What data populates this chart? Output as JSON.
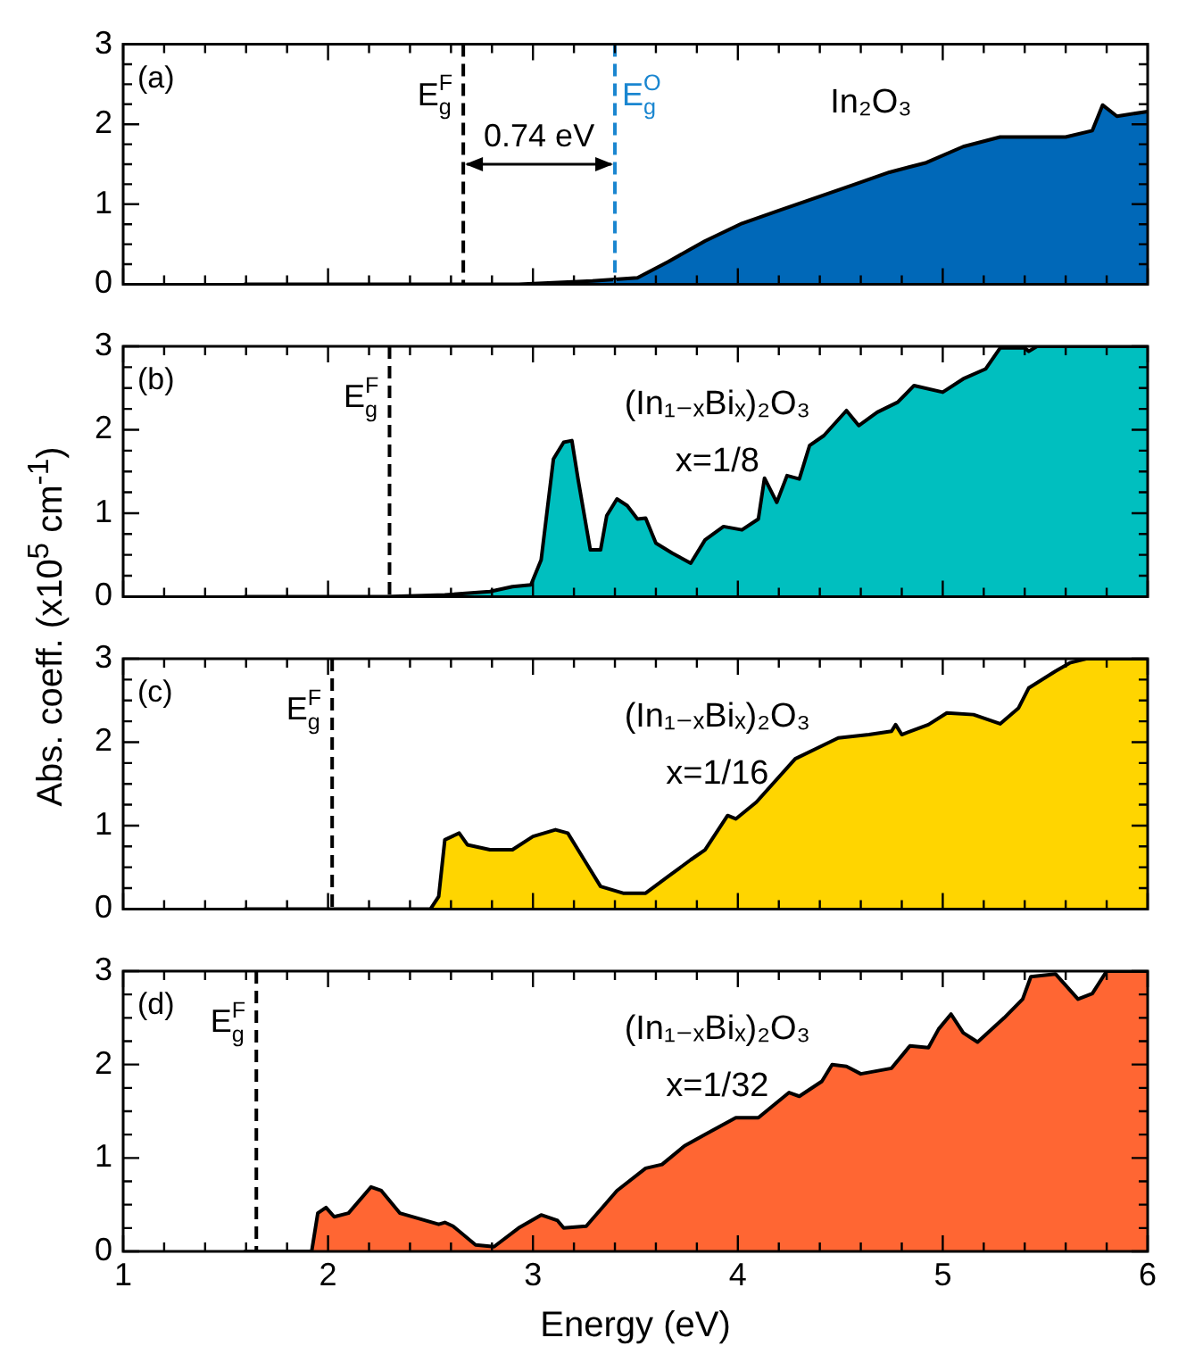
{
  "chart_data": [
    {
      "type": "area",
      "tick_labels": "y",
      "grid": false,
      "legend": false,
      "x": [
        1.59,
        2.93,
        3.29,
        3.4,
        3.51,
        3.66,
        3.77,
        3.84,
        4.02,
        4.2,
        4.38,
        4.56,
        4.74,
        4.92,
        5.1,
        5.28,
        5.46,
        5.6,
        5.73,
        5.78,
        5.85,
        6.0
      ],
      "values": [
        0,
        0,
        0.04,
        0.06,
        0.08,
        0.28,
        0.44,
        0.54,
        0.76,
        0.92,
        1.08,
        1.24,
        1.4,
        1.52,
        1.72,
        1.84,
        1.84,
        1.84,
        1.92,
        2.24,
        2.1,
        2.16
      ],
      "color": "#0068b8",
      "xlim": [
        1,
        6
      ],
      "xticks": [
        1,
        {
          "value": 1.2,
          "label": null
        },
        {
          "value": 1.4,
          "label": null
        },
        {
          "value": 1.6,
          "label": null
        },
        {
          "value": 1.8,
          "label": null
        },
        2,
        {
          "value": 2.2,
          "label": null
        },
        {
          "value": 2.4,
          "label": null
        },
        {
          "value": 2.6,
          "label": null
        },
        {
          "value": 2.8,
          "label": null
        },
        3,
        {
          "value": 3.2,
          "label": null
        },
        {
          "value": 3.4,
          "label": null
        },
        {
          "value": 3.6,
          "label": null
        },
        {
          "value": 3.8,
          "label": null
        },
        4,
        {
          "value": 4.2,
          "label": null
        },
        {
          "value": 4.4,
          "label": null
        },
        {
          "value": 4.6,
          "label": null
        },
        {
          "value": 4.8,
          "label": null
        },
        5,
        {
          "value": 5.2,
          "label": null
        },
        {
          "value": 5.4,
          "label": null
        },
        {
          "value": 5.6,
          "label": null
        },
        {
          "value": 5.8,
          "label": null
        },
        6
      ],
      "ylim": [
        0,
        3
      ],
      "yticks": [
        0,
        {
          "value": 0.25,
          "label": null
        },
        {
          "value": 0.5,
          "label": null
        },
        {
          "value": 0.75,
          "label": null
        },
        1,
        {
          "value": 1.25,
          "label": null
        },
        {
          "value": 1.5,
          "label": null
        },
        {
          "value": 1.75,
          "label": null
        },
        2,
        {
          "value": 2.25,
          "label": null
        },
        {
          "value": 2.5,
          "label": null
        },
        {
          "value": 2.75,
          "label": null
        },
        3
      ],
      "ref_lines": [
        {
          "axis": "x",
          "value": 2.66,
          "label": "E$_{g}$$^{F}$",
          "color": "#000000",
          "line_style": "dashed"
        },
        {
          "axis": "x",
          "value": 3.4,
          "label": "E$_{g}$$^{O}$",
          "color": "#1a86d0",
          "line_style": "dashed"
        }
      ],
      "annotations": [
        "(a)",
        "In₂O₃",
        "0.74 eV"
      ]
    },
    {
      "type": "area",
      "tick_labels": "y",
      "grid": false,
      "legend": false,
      "ylabel": "Abs. coeff. (x10$^{5}$ cm$^{-1}$)",
      "x": [
        1.59,
        2.28,
        2.57,
        2.79,
        2.9,
        2.99,
        3.04,
        3.1,
        3.15,
        3.19,
        3.22,
        3.28,
        3.33,
        3.36,
        3.41,
        3.46,
        3.51,
        3.55,
        3.6,
        3.68,
        3.77,
        3.84,
        3.93,
        4.02,
        4.1,
        4.13,
        4.19,
        4.24,
        4.3,
        4.35,
        4.42,
        4.53,
        4.59,
        4.68,
        4.78,
        4.86,
        5.0,
        5.1,
        5.21,
        5.28,
        5.4,
        5.42,
        5.46,
        6.0
      ],
      "values": [
        0,
        0,
        0.02,
        0.06,
        0.12,
        0.14,
        0.44,
        1.65,
        1.85,
        1.87,
        1.41,
        0.56,
        0.56,
        0.97,
        1.17,
        1.09,
        0.93,
        0.94,
        0.64,
        0.52,
        0.4,
        0.68,
        0.84,
        0.8,
        0.93,
        1.42,
        1.13,
        1.45,
        1.41,
        1.81,
        1.93,
        2.23,
        2.05,
        2.21,
        2.33,
        2.53,
        2.45,
        2.61,
        2.73,
        2.98,
        2.98,
        2.94,
        3.0,
        3.0
      ],
      "color": "#00bfbf",
      "xlim": [
        1,
        6
      ],
      "xticks": [
        1,
        {
          "value": 1.2,
          "label": null
        },
        {
          "value": 1.4,
          "label": null
        },
        {
          "value": 1.6,
          "label": null
        },
        {
          "value": 1.8,
          "label": null
        },
        2,
        {
          "value": 2.2,
          "label": null
        },
        {
          "value": 2.4,
          "label": null
        },
        {
          "value": 2.6,
          "label": null
        },
        {
          "value": 2.8,
          "label": null
        },
        3,
        {
          "value": 3.2,
          "label": null
        },
        {
          "value": 3.4,
          "label": null
        },
        {
          "value": 3.6,
          "label": null
        },
        {
          "value": 3.8,
          "label": null
        },
        4,
        {
          "value": 4.2,
          "label": null
        },
        {
          "value": 4.4,
          "label": null
        },
        {
          "value": 4.6,
          "label": null
        },
        {
          "value": 4.8,
          "label": null
        },
        5,
        {
          "value": 5.2,
          "label": null
        },
        {
          "value": 5.4,
          "label": null
        },
        {
          "value": 5.6,
          "label": null
        },
        {
          "value": 5.8,
          "label": null
        },
        6
      ],
      "ylim": [
        0,
        3
      ],
      "yticks": [
        0,
        {
          "value": 0.25,
          "label": null
        },
        {
          "value": 0.5,
          "label": null
        },
        {
          "value": 0.75,
          "label": null
        },
        1,
        {
          "value": 1.25,
          "label": null
        },
        {
          "value": 1.5,
          "label": null
        },
        {
          "value": 1.75,
          "label": null
        },
        2,
        {
          "value": 2.25,
          "label": null
        },
        {
          "value": 2.5,
          "label": null
        },
        {
          "value": 2.75,
          "label": null
        },
        3
      ],
      "ref_lines": [
        {
          "axis": "x",
          "value": 2.3,
          "label": "E$_{g}$$^{F}$",
          "color": "#000000",
          "line_style": "dashed"
        }
      ],
      "annotations": [
        "(b)",
        "(In₁₋ₓBiₓ)₂O₃",
        "x=1/8"
      ]
    },
    {
      "type": "area",
      "tick_labels": "y",
      "grid": false,
      "legend": false,
      "x": [
        1.59,
        2.5,
        2.54,
        2.57,
        2.64,
        2.68,
        2.79,
        2.9,
        3.0,
        3.11,
        3.17,
        3.26,
        3.33,
        3.44,
        3.55,
        3.66,
        3.77,
        3.84,
        3.95,
        3.99,
        4.09,
        4.28,
        4.38,
        4.49,
        4.64,
        4.75,
        4.77,
        4.8,
        4.93,
        5.02,
        5.15,
        5.28,
        5.37,
        5.42,
        5.55,
        5.62,
        5.7,
        6.0
      ],
      "values": [
        0,
        0,
        0.15,
        0.83,
        0.91,
        0.77,
        0.71,
        0.71,
        0.87,
        0.95,
        0.91,
        0.55,
        0.27,
        0.19,
        0.19,
        0.39,
        0.59,
        0.71,
        1.12,
        1.08,
        1.28,
        1.8,
        1.92,
        2.05,
        2.09,
        2.13,
        2.21,
        2.09,
        2.21,
        2.35,
        2.33,
        2.22,
        2.41,
        2.65,
        2.85,
        2.95,
        3.0,
        3.0
      ],
      "color": "#ffd500",
      "xlim": [
        1,
        6
      ],
      "xticks": [
        1,
        {
          "value": 1.2,
          "label": null
        },
        {
          "value": 1.4,
          "label": null
        },
        {
          "value": 1.6,
          "label": null
        },
        {
          "value": 1.8,
          "label": null
        },
        2,
        {
          "value": 2.2,
          "label": null
        },
        {
          "value": 2.4,
          "label": null
        },
        {
          "value": 2.6,
          "label": null
        },
        {
          "value": 2.8,
          "label": null
        },
        3,
        {
          "value": 3.2,
          "label": null
        },
        {
          "value": 3.4,
          "label": null
        },
        {
          "value": 3.6,
          "label": null
        },
        {
          "value": 3.8,
          "label": null
        },
        4,
        {
          "value": 4.2,
          "label": null
        },
        {
          "value": 4.4,
          "label": null
        },
        {
          "value": 4.6,
          "label": null
        },
        {
          "value": 4.8,
          "label": null
        },
        5,
        {
          "value": 5.2,
          "label": null
        },
        {
          "value": 5.4,
          "label": null
        },
        {
          "value": 5.6,
          "label": null
        },
        {
          "value": 5.8,
          "label": null
        },
        6
      ],
      "ylim": [
        0,
        3
      ],
      "yticks": [
        0,
        {
          "value": 0.25,
          "label": null
        },
        {
          "value": 0.5,
          "label": null
        },
        {
          "value": 0.75,
          "label": null
        },
        1,
        {
          "value": 1.25,
          "label": null
        },
        {
          "value": 1.5,
          "label": null
        },
        {
          "value": 1.75,
          "label": null
        },
        2,
        {
          "value": 2.25,
          "label": null
        },
        {
          "value": 2.5,
          "label": null
        },
        {
          "value": 2.75,
          "label": null
        },
        3
      ],
      "ref_lines": [
        {
          "axis": "x",
          "value": 2.02,
          "label": "E$_{g}$$^{F}$",
          "color": "#000000",
          "line_style": "dashed"
        }
      ],
      "annotations": [
        "(c)",
        "(In₁₋ₓBiₓ)₂O₃",
        "x=1/16"
      ]
    },
    {
      "type": "area",
      "grid": false,
      "legend": false,
      "xlabel": "Energy (eV)",
      "x": [
        1.59,
        1.92,
        1.95,
        1.99,
        2.03,
        2.1,
        2.21,
        2.26,
        2.35,
        2.54,
        2.57,
        2.61,
        2.72,
        2.81,
        2.93,
        3.04,
        3.12,
        3.15,
        3.26,
        3.41,
        3.55,
        3.63,
        3.74,
        3.88,
        3.99,
        4.1,
        4.25,
        4.3,
        4.41,
        4.46,
        4.53,
        4.6,
        4.75,
        4.84,
        4.93,
        4.98,
        5.04,
        5.1,
        5.17,
        5.3,
        5.39,
        5.43,
        5.55,
        5.66,
        5.73,
        5.8,
        6.0
      ],
      "values": [
        0,
        0,
        0.41,
        0.47,
        0.37,
        0.41,
        0.69,
        0.65,
        0.41,
        0.29,
        0.31,
        0.27,
        0.07,
        0.05,
        0.25,
        0.39,
        0.33,
        0.25,
        0.27,
        0.65,
        0.89,
        0.93,
        1.13,
        1.3,
        1.43,
        1.43,
        1.7,
        1.66,
        1.82,
        2.0,
        1.98,
        1.9,
        1.96,
        2.2,
        2.18,
        2.38,
        2.54,
        2.34,
        2.24,
        2.5,
        2.7,
        2.94,
        2.97,
        2.7,
        2.76,
        3.0,
        3.0
      ],
      "color": "#ff6633",
      "xlim": [
        1,
        6
      ],
      "xticks": [
        1,
        {
          "value": 1.2,
          "label": null
        },
        {
          "value": 1.4,
          "label": null
        },
        {
          "value": 1.6,
          "label": null
        },
        {
          "value": 1.8,
          "label": null
        },
        2,
        {
          "value": 2.2,
          "label": null
        },
        {
          "value": 2.4,
          "label": null
        },
        {
          "value": 2.6,
          "label": null
        },
        {
          "value": 2.8,
          "label": null
        },
        3,
        {
          "value": 3.2,
          "label": null
        },
        {
          "value": 3.4,
          "label": null
        },
        {
          "value": 3.6,
          "label": null
        },
        {
          "value": 3.8,
          "label": null
        },
        4,
        {
          "value": 4.2,
          "label": null
        },
        {
          "value": 4.4,
          "label": null
        },
        {
          "value": 4.6,
          "label": null
        },
        {
          "value": 4.8,
          "label": null
        },
        5,
        {
          "value": 5.2,
          "label": null
        },
        {
          "value": 5.4,
          "label": null
        },
        {
          "value": 5.6,
          "label": null
        },
        {
          "value": 5.8,
          "label": null
        },
        6
      ],
      "ylim": [
        0,
        3
      ],
      "yticks": [
        0,
        {
          "value": 0.25,
          "label": null
        },
        {
          "value": 0.5,
          "label": null
        },
        {
          "value": 0.75,
          "label": null
        },
        1,
        {
          "value": 1.25,
          "label": null
        },
        {
          "value": 1.5,
          "label": null
        },
        {
          "value": 1.75,
          "label": null
        },
        2,
        {
          "value": 2.25,
          "label": null
        },
        {
          "value": 2.5,
          "label": null
        },
        {
          "value": 2.75,
          "label": null
        },
        3
      ],
      "ref_lines": [
        {
          "axis": "x",
          "value": 1.65,
          "label": "E$_{g}$$^{F}$",
          "color": "#000000",
          "line_style": "dashed"
        }
      ],
      "annotations": [
        "(d)",
        "(In₁₋ₓBiₓ)₂O₃",
        "x=1/32"
      ]
    }
  ]
}
